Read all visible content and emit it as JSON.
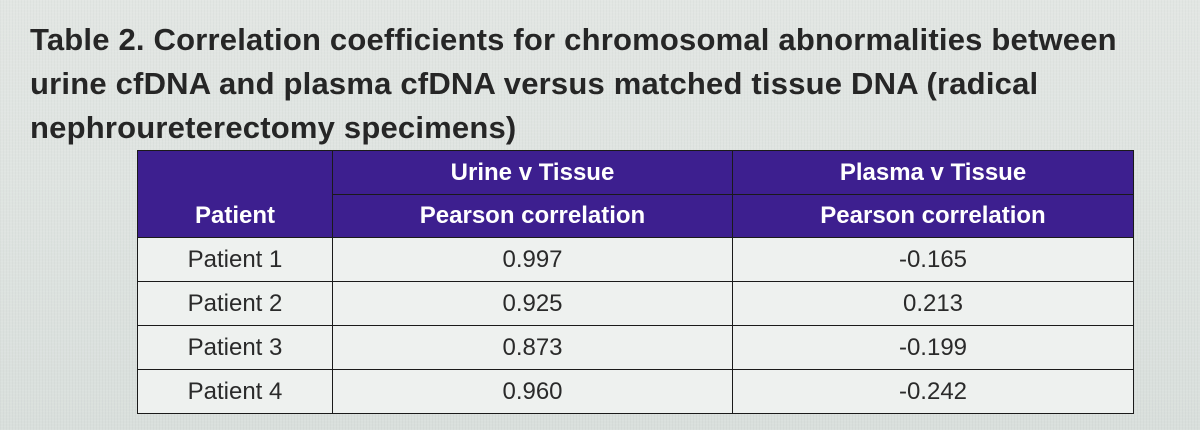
{
  "caption": "Table 2. Correlation coefficients for chromosomal abnormalities between urine cfDNA and plasma cfDNA versus matched tissue DNA (radical nephroureterectomy specimens)",
  "table": {
    "group_headers": [
      "Urine v Tissue",
      "Plasma v Tissue"
    ],
    "columns": [
      "Patient",
      "Pearson correlation",
      "Pearson correlation"
    ],
    "rows": [
      {
        "patient": "Patient 1",
        "urine": "0.997",
        "plasma": "-0.165"
      },
      {
        "patient": "Patient 2",
        "urine": "0.925",
        "plasma": "0.213"
      },
      {
        "patient": "Patient 3",
        "urine": "0.873",
        "plasma": "-0.199"
      },
      {
        "patient": "Patient 4",
        "urine": "0.960",
        "plasma": "-0.242"
      }
    ]
  },
  "colors": {
    "header_bg": "#3d1f8f",
    "header_text": "#ffffff",
    "cell_bg": "#eef1ef"
  }
}
